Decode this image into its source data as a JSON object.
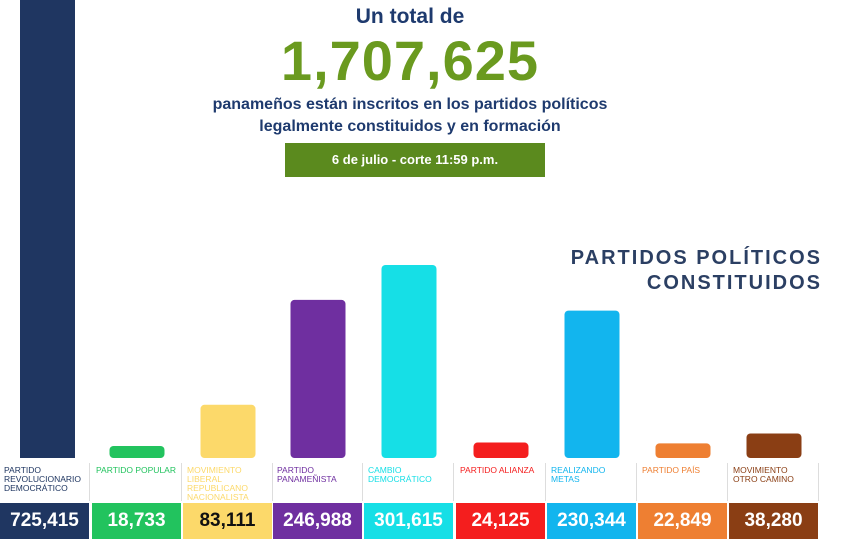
{
  "chart_data": {
    "type": "bar",
    "title": "Un total de",
    "total_label": "1,707,625",
    "subtitle": [
      "panameños están inscritos en los partidos políticos",
      "legalmente constituidos y en formación"
    ],
    "date_note": "6 de julio - corte 11:59 p.m.",
    "section_title": [
      "PARTIDOS POLÍTICOS",
      "CONSTITUIDOS"
    ],
    "categories": [
      "PARTIDO REVOLUCIONARIO DEMOCRÁTICO",
      "PARTIDO POPULAR",
      "MOVIMIENTO LIBERAL REPUBLICANO NACIONALISTA",
      "PARTIDO PANAMEÑISTA",
      "CAMBIO DEMOCRÁTICO",
      "PARTIDO ALIANZA",
      "REALIZANDO METAS",
      "PARTIDO PAÍS",
      "MOVIMIENTO OTRO CAMINO"
    ],
    "values": [
      725415,
      18733,
      83111,
      246988,
      301615,
      24125,
      230344,
      22849,
      38280
    ],
    "value_labels": [
      "725,415",
      "18,733",
      "83,111",
      "246,988",
      "301,615",
      "24,125",
      "230,344",
      "22,849",
      "38,280"
    ],
    "colors": [
      "#1f3661",
      "#22c35e",
      "#fcd96a",
      "#6f2fa0",
      "#16dfe6",
      "#f41e1e",
      "#12b5ee",
      "#ee7f32",
      "#8a3e14"
    ]
  }
}
